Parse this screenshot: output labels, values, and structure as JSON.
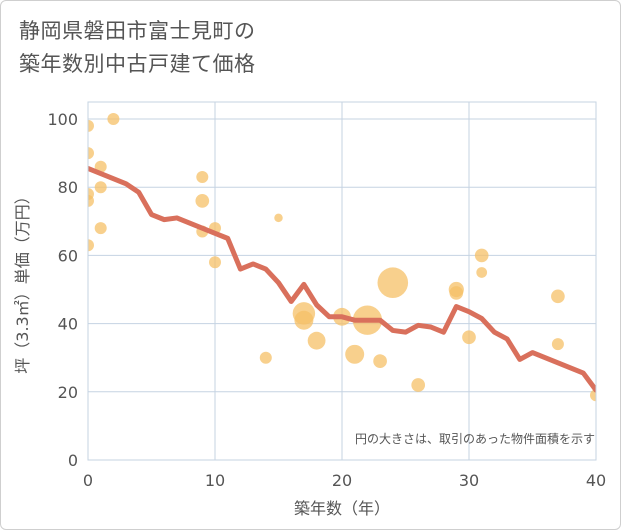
{
  "title_line1": "静岡県磐田市富士見町の",
  "title_line2": "築年数別中古戸建て価格",
  "chart_data": {
    "type": "scatter+line",
    "title": "静岡県磐田市富士見町の築年数別中古戸建て価格",
    "xlabel": "築年数（年）",
    "ylabel": "坪（3.3㎡）単価（万円）",
    "xlim": [
      0,
      40
    ],
    "ylim": [
      0,
      105
    ],
    "xticks": [
      0,
      10,
      20,
      30,
      40
    ],
    "yticks": [
      0,
      20,
      40,
      60,
      80,
      100
    ],
    "grid": true,
    "note": "円の大きさは、取引のあった物件面積を示す",
    "colors": {
      "bubble": "#f5c067",
      "line": "#d9705c",
      "grid": "#c5d3e2"
    },
    "bubbles": [
      {
        "x": 0,
        "y": 98,
        "size": 1
      },
      {
        "x": 0,
        "y": 90,
        "size": 1
      },
      {
        "x": 0,
        "y": 78,
        "size": 1
      },
      {
        "x": 0,
        "y": 76,
        "size": 1
      },
      {
        "x": 0,
        "y": 63,
        "size": 1
      },
      {
        "x": 1,
        "y": 86,
        "size": 1
      },
      {
        "x": 1,
        "y": 80,
        "size": 1
      },
      {
        "x": 1,
        "y": 68,
        "size": 1
      },
      {
        "x": 2,
        "y": 100,
        "size": 1
      },
      {
        "x": 9,
        "y": 83,
        "size": 1
      },
      {
        "x": 9,
        "y": 76,
        "size": 1.3
      },
      {
        "x": 9,
        "y": 67,
        "size": 1
      },
      {
        "x": 10,
        "y": 68,
        "size": 1
      },
      {
        "x": 10,
        "y": 58,
        "size": 1
      },
      {
        "x": 14,
        "y": 30,
        "size": 1
      },
      {
        "x": 15,
        "y": 71,
        "size": 0.5
      },
      {
        "x": 17,
        "y": 43,
        "size": 3.5
      },
      {
        "x": 17,
        "y": 41,
        "size": 2.5
      },
      {
        "x": 18,
        "y": 35,
        "size": 2.2
      },
      {
        "x": 20,
        "y": 42,
        "size": 2.2
      },
      {
        "x": 21,
        "y": 31,
        "size": 2.5
      },
      {
        "x": 22,
        "y": 41,
        "size": 6
      },
      {
        "x": 23,
        "y": 29,
        "size": 1.3
      },
      {
        "x": 24,
        "y": 52,
        "size": 6.5
      },
      {
        "x": 26,
        "y": 22,
        "size": 1.3
      },
      {
        "x": 29,
        "y": 50,
        "size": 1.6
      },
      {
        "x": 29,
        "y": 49,
        "size": 1.3
      },
      {
        "x": 30,
        "y": 36,
        "size": 1.3
      },
      {
        "x": 31,
        "y": 60,
        "size": 1.3
      },
      {
        "x": 31,
        "y": 55,
        "size": 0.8
      },
      {
        "x": 37,
        "y": 48,
        "size": 1.3
      },
      {
        "x": 37,
        "y": 34,
        "size": 1
      },
      {
        "x": 40,
        "y": 19,
        "size": 1
      }
    ],
    "line": {
      "x": [
        0,
        1,
        2,
        3,
        4,
        5,
        6,
        7,
        8,
        9,
        10,
        11,
        12,
        13,
        14,
        15,
        16,
        17,
        18,
        19,
        20,
        21,
        22,
        23,
        24,
        25,
        26,
        27,
        28,
        29,
        30,
        31,
        32,
        33,
        34,
        35,
        36,
        37,
        38,
        39,
        40
      ],
      "y": [
        85.5,
        84,
        82.5,
        81,
        78.5,
        72,
        70.5,
        71,
        69.5,
        68,
        66.5,
        65,
        56,
        57.5,
        56,
        52,
        46.5,
        51.5,
        45.5,
        42,
        42,
        41,
        41,
        41,
        38,
        37.5,
        39.5,
        39,
        37.5,
        45,
        43.5,
        41.5,
        37.5,
        35.5,
        29.5,
        31.5,
        30,
        28.5,
        27,
        25.5,
        20.5
      ]
    }
  }
}
